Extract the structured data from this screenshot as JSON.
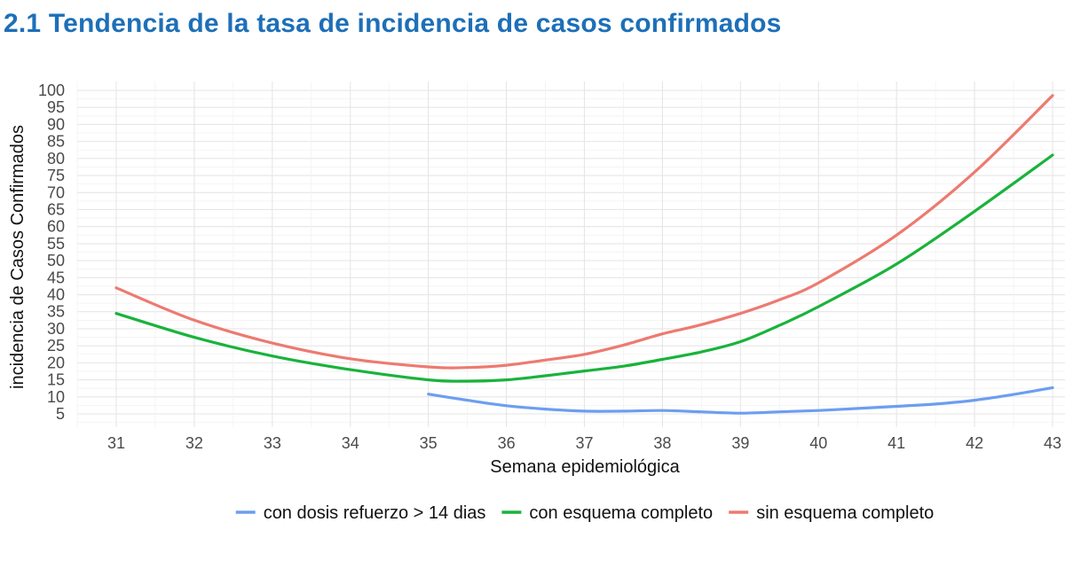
{
  "heading": "2.1 Tendencia de la tasa de incidencia de casos confirmados",
  "chart_data": {
    "type": "line",
    "title": "",
    "xlabel": "Semana epidemiológica",
    "ylabel": "incidencia de Casos Confirmados",
    "xlim": [
      31,
      43
    ],
    "ylim": [
      5,
      100
    ],
    "xticks": [
      "31",
      "32",
      "33",
      "34",
      "35",
      "36",
      "37",
      "38",
      "39",
      "40",
      "41",
      "42",
      "43"
    ],
    "yticks": [
      "5",
      "10",
      "15",
      "20",
      "25",
      "30",
      "35",
      "40",
      "45",
      "50",
      "55",
      "60",
      "65",
      "70",
      "75",
      "80",
      "85",
      "90",
      "95",
      "100"
    ],
    "grid": true,
    "legend_position": "bottom",
    "series": [
      {
        "name": "con dosis refuerzo > 14 dias",
        "color": "#6c9ef0",
        "x": [
          35,
          35.5,
          36,
          36.5,
          37,
          37.5,
          38,
          38.5,
          39,
          39.5,
          40,
          40.5,
          41,
          41.5,
          42,
          42.5,
          43
        ],
        "y": [
          10.8,
          9,
          7.4,
          6.4,
          5.8,
          5.8,
          6.0,
          5.6,
          5.2,
          5.6,
          6.0,
          6.6,
          7.2,
          7.9,
          9.0,
          10.7,
          12.7
        ]
      },
      {
        "name": "con esquema completo",
        "color": "#19b33b",
        "x": [
          31,
          32,
          33,
          34,
          35,
          35.5,
          36,
          36.5,
          37,
          37.5,
          38,
          38.5,
          39,
          39.5,
          40,
          41,
          42,
          43
        ],
        "y": [
          34.5,
          27.5,
          22,
          18,
          15,
          14.6,
          15,
          16.2,
          17.6,
          19,
          21,
          23.2,
          26.2,
          31,
          36.5,
          49,
          64.5,
          81
        ]
      },
      {
        "name": "sin esquema completo",
        "color": "#ed7a70",
        "x": [
          31,
          32,
          33,
          34,
          35,
          35.5,
          36,
          36.5,
          37,
          37.5,
          38,
          38.5,
          39,
          39.5,
          40,
          41,
          42,
          43
        ],
        "y": [
          42,
          32.5,
          25.8,
          21.2,
          18.8,
          18.6,
          19.3,
          20.8,
          22.5,
          25.2,
          28.5,
          31.2,
          34.5,
          38.5,
          43.5,
          57.5,
          76,
          98.5
        ]
      }
    ]
  }
}
